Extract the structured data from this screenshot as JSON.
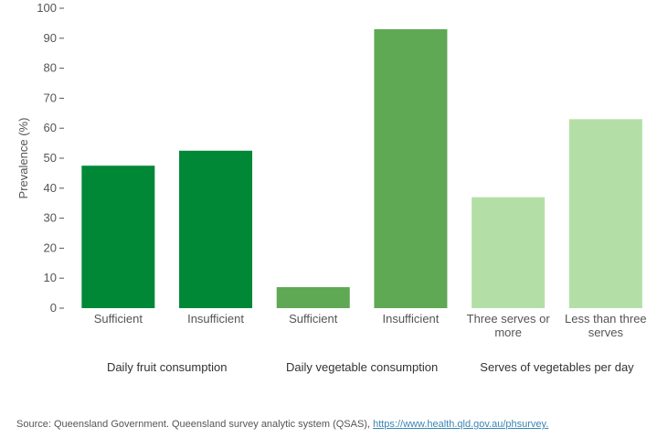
{
  "chart_data": {
    "type": "bar",
    "ylabel": "Prevalence (%)",
    "ylim": [
      0,
      100
    ],
    "yticks": [
      0,
      10,
      20,
      30,
      40,
      50,
      60,
      70,
      80,
      90,
      100
    ],
    "grid": false,
    "groups": [
      {
        "label": "Daily fruit consumption",
        "color": "#008837",
        "bars": [
          {
            "label": [
              "Sufficient"
            ],
            "value": 47.5
          },
          {
            "label": [
              "Insufficient"
            ],
            "value": 52.5
          }
        ]
      },
      {
        "label": "Daily vegetable consumption",
        "color": "#5fa854",
        "bars": [
          {
            "label": [
              "Sufficient"
            ],
            "value": 7.0
          },
          {
            "label": [
              "Insufficient"
            ],
            "value": 93.0
          }
        ]
      },
      {
        "label": "Serves of vegetables per day",
        "color": "#b3dfa7",
        "bars": [
          {
            "label": [
              "Three serves or",
              "more"
            ],
            "value": 37.0
          },
          {
            "label": [
              "Less than three",
              "serves"
            ],
            "value": 63.0
          }
        ]
      }
    ]
  },
  "source": {
    "text": "Source: Queensland Government. Queensland survey analytic system (QSAS), ",
    "link": "https://www.health.qld.gov.au/phsurvey."
  }
}
